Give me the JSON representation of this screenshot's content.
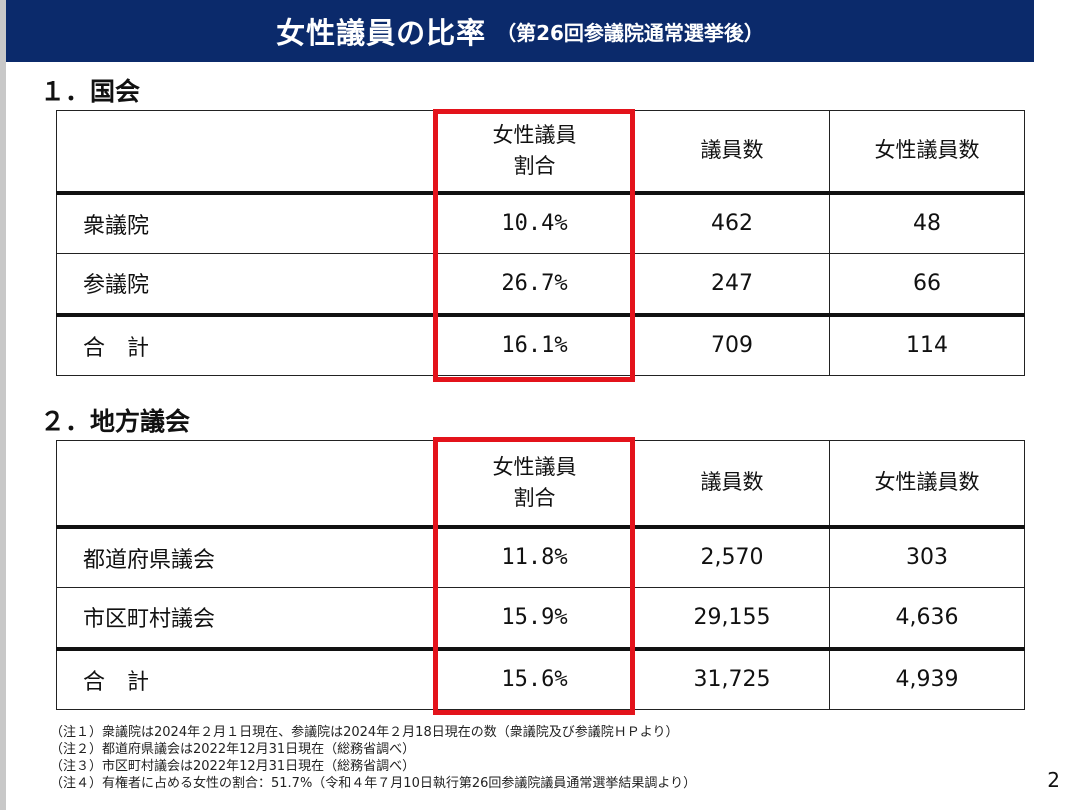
{
  "title": {
    "main": "女性議員の比率",
    "sub": "（第26回参議院通常選挙後）"
  },
  "sections": [
    {
      "heading": "１．国会",
      "headers": {
        "rate": [
          "女性議員",
          "割合"
        ],
        "members": "議員数",
        "women": "女性議員数"
      },
      "rows": [
        {
          "label": "衆議院",
          "rate": "10.4%",
          "members": "462",
          "women": "48"
        },
        {
          "label": "参議院",
          "rate": "26.7%",
          "members": "247",
          "women": "66"
        }
      ],
      "total": {
        "label": "合　計",
        "rate": "16.1%",
        "members": "709",
        "women": "114"
      }
    },
    {
      "heading": "２．地方議会",
      "headers": {
        "rate": [
          "女性議員",
          "割合"
        ],
        "members": "議員数",
        "women": "女性議員数"
      },
      "rows": [
        {
          "label": "都道府県議会",
          "rate": "11.8%",
          "members": "2,570",
          "women": "303"
        },
        {
          "label": "市区町村議会",
          "rate": "15.9%",
          "members": "29,155",
          "women": "4,636"
        }
      ],
      "total": {
        "label": "合　計",
        "rate": "15.6%",
        "members": "31,725",
        "women": "4,939"
      }
    }
  ],
  "notes": [
    "（注１）衆議院は2024年２月１日現在、参議院は2024年２月18日現在の数（衆議院及び参議院ＨＰより）",
    "（注２）都道府県議会は2022年12月31日現在（総務省調べ）",
    "（注３）市区町村議会は2022年12月31日現在（総務省調べ）",
    "（注４）有権者に占める女性の割合：51.7%（令和４年７月10日執行第26回参議院議員通常選挙結果調より）"
  ],
  "page_number": "2",
  "colors": {
    "title_bar": "#0b2a6b",
    "highlight_frame": "#e3131b"
  }
}
